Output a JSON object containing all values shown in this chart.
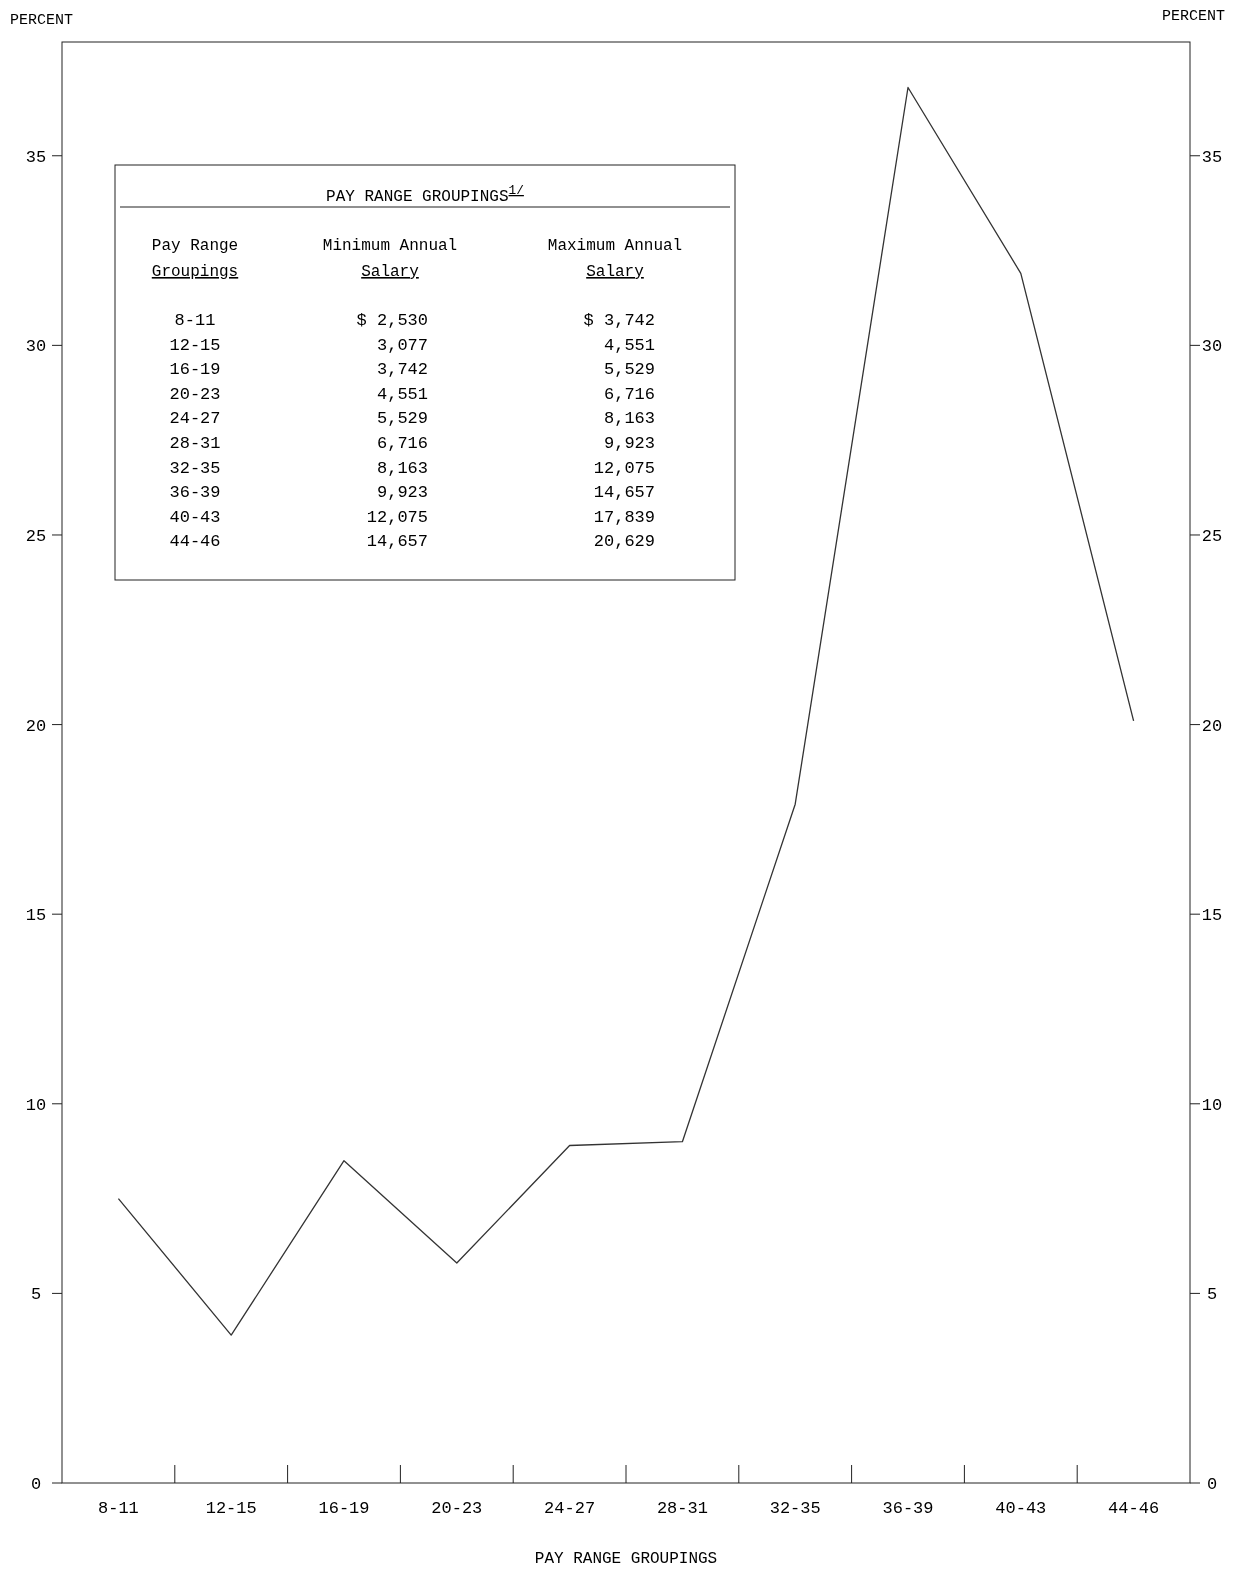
{
  "chart_data": {
    "type": "line",
    "xlabel": "PAY RANGE GROUPINGS",
    "ylabel": "PERCENT",
    "y2label": "PERCENT",
    "categories": [
      "8-11",
      "12-15",
      "16-19",
      "20-23",
      "24-27",
      "28-31",
      "32-35",
      "36-39",
      "40-43",
      "44-46"
    ],
    "series": [
      {
        "color": "#333333",
        "values": [
          7.5,
          3.9,
          8.5,
          5.8,
          8.9,
          9.0,
          17.9,
          36.8,
          31.9,
          20.1
        ]
      }
    ],
    "ylim": [
      0,
      38
    ],
    "yticks": [
      0,
      5,
      10,
      15,
      20,
      25,
      30,
      35
    ],
    "y2lim": [
      0,
      38
    ],
    "y2ticks": [
      0,
      5,
      10,
      15,
      20,
      25,
      30,
      35
    ],
    "grid": false,
    "marker": "none",
    "line_style": "solid",
    "annotations": [
      "PAY RANGE GROUPINGS$^{1/}$",
      "Pay Range",
      "Minimum Annual",
      "Maximum Annual",
      "Groupings",
      "Salary",
      "Salary",
      "8-11",
      "$ 2,530",
      "$ 3,742",
      "12-15",
      "3,077",
      "4,551",
      "16-19",
      "3,742",
      "5,529",
      "20-23",
      "4,551",
      "6,716",
      "24-27",
      "5,529",
      "8,163",
      "28-31",
      "6,716",
      "9,923",
      "32-35",
      "8,163",
      "12,075",
      "36-39",
      "9,923",
      "14,657",
      "40-43",
      "12,075",
      "17,839",
      "44-46",
      "14,657",
      "20,629"
    ]
  }
}
